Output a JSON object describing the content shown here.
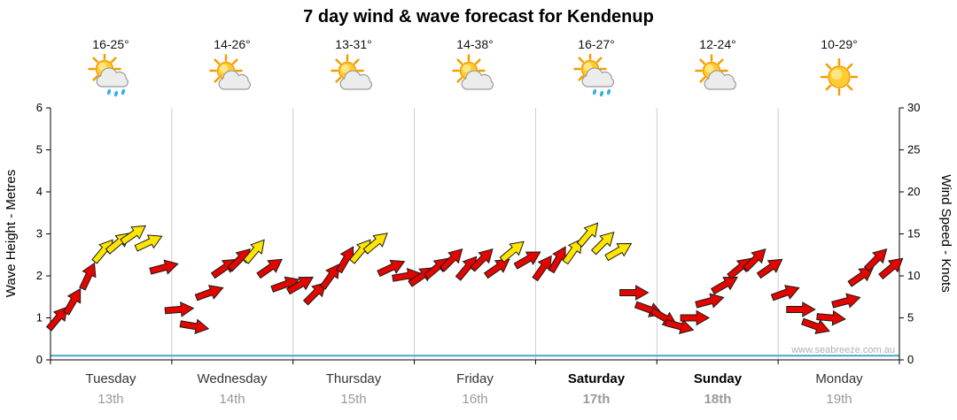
{
  "title": "7 day wind & wave forecast for Kendenup",
  "watermark": "www.seabreeze.com.au",
  "days": [
    {
      "name": "Tuesday",
      "date": "13th",
      "temp": "16-25°",
      "icon": "partly-cloudy-showers",
      "bold": false
    },
    {
      "name": "Wednesday",
      "date": "14th",
      "temp": "14-26°",
      "icon": "partly-cloudy",
      "bold": false
    },
    {
      "name": "Thursday",
      "date": "15th",
      "temp": "13-31°",
      "icon": "partly-cloudy",
      "bold": false
    },
    {
      "name": "Friday",
      "date": "16th",
      "temp": "14-38°",
      "icon": "partly-cloudy",
      "bold": false
    },
    {
      "name": "Saturday",
      "date": "17th",
      "temp": "16-27°",
      "icon": "partly-cloudy-showers",
      "bold": true
    },
    {
      "name": "Sunday",
      "date": "18th",
      "temp": "12-24°",
      "icon": "partly-cloudy",
      "bold": true
    },
    {
      "name": "Monday",
      "date": "19th",
      "temp": "10-29°",
      "icon": "sunny",
      "bold": false
    }
  ],
  "chart_data": {
    "type": "scatter",
    "title": "7 day wind & wave forecast for Kendenup",
    "x_categories": [
      "Tuesday 13th",
      "Wednesday 14th",
      "Thursday 15th",
      "Friday 16th",
      "Saturday 17th",
      "Sunday 18th",
      "Monday 19th"
    ],
    "left_axis": {
      "label": "Wave Height - Metres",
      "ticks": [
        0,
        1,
        2,
        3,
        4,
        5,
        6
      ],
      "range": [
        0,
        6
      ]
    },
    "right_axis": {
      "label": "Wind Speed - Knots",
      "ticks": [
        0,
        5,
        10,
        15,
        20,
        25,
        30
      ],
      "range": [
        0,
        30
      ]
    },
    "samples_per_day": 8,
    "strong_wind_threshold_knots": 12.5,
    "colors": {
      "wind_normal": "#e10600",
      "wind_strong": "#ffe500",
      "wave_line": "#4aa6c8",
      "outline": "#1a1a1a"
    },
    "wind_knots_by_day": [
      {
        "day": "Tuesday",
        "knots": [
          5,
          7,
          10,
          13,
          14,
          15,
          14,
          11
        ],
        "dir_deg": [
          40,
          30,
          25,
          40,
          50,
          55,
          65,
          75
        ]
      },
      {
        "day": "Wednesday",
        "knots": [
          6,
          4,
          8,
          11,
          12,
          13,
          11,
          9
        ],
        "dir_deg": [
          85,
          100,
          70,
          55,
          45,
          40,
          55,
          70
        ]
      },
      {
        "day": "Thursday",
        "knots": [
          9,
          8,
          10,
          12,
          13,
          14,
          11,
          10
        ],
        "dir_deg": [
          60,
          45,
          35,
          30,
          40,
          50,
          65,
          80
        ]
      },
      {
        "day": "Friday",
        "knots": [
          10,
          11,
          12,
          11,
          12,
          11,
          13,
          12
        ],
        "dir_deg": [
          55,
          50,
          45,
          40,
          45,
          55,
          50,
          60
        ]
      },
      {
        "day": "Saturday",
        "knots": [
          11,
          12,
          13,
          15,
          14,
          13,
          8,
          6
        ],
        "dir_deg": [
          35,
          30,
          35,
          40,
          45,
          60,
          90,
          110
        ]
      },
      {
        "day": "Sunday",
        "knots": [
          5,
          4,
          5,
          7,
          9,
          11,
          12,
          11
        ],
        "dir_deg": [
          120,
          105,
          90,
          75,
          60,
          50,
          45,
          55
        ]
      },
      {
        "day": "Monday",
        "knots": [
          8,
          6,
          4,
          5,
          7,
          10,
          12,
          11
        ],
        "dir_deg": [
          70,
          90,
          110,
          95,
          75,
          55,
          45,
          50
        ]
      }
    ],
    "wave_height_m": [
      0.1,
      0.1,
      0.1,
      0.1,
      0.1,
      0.1,
      0.1
    ]
  }
}
